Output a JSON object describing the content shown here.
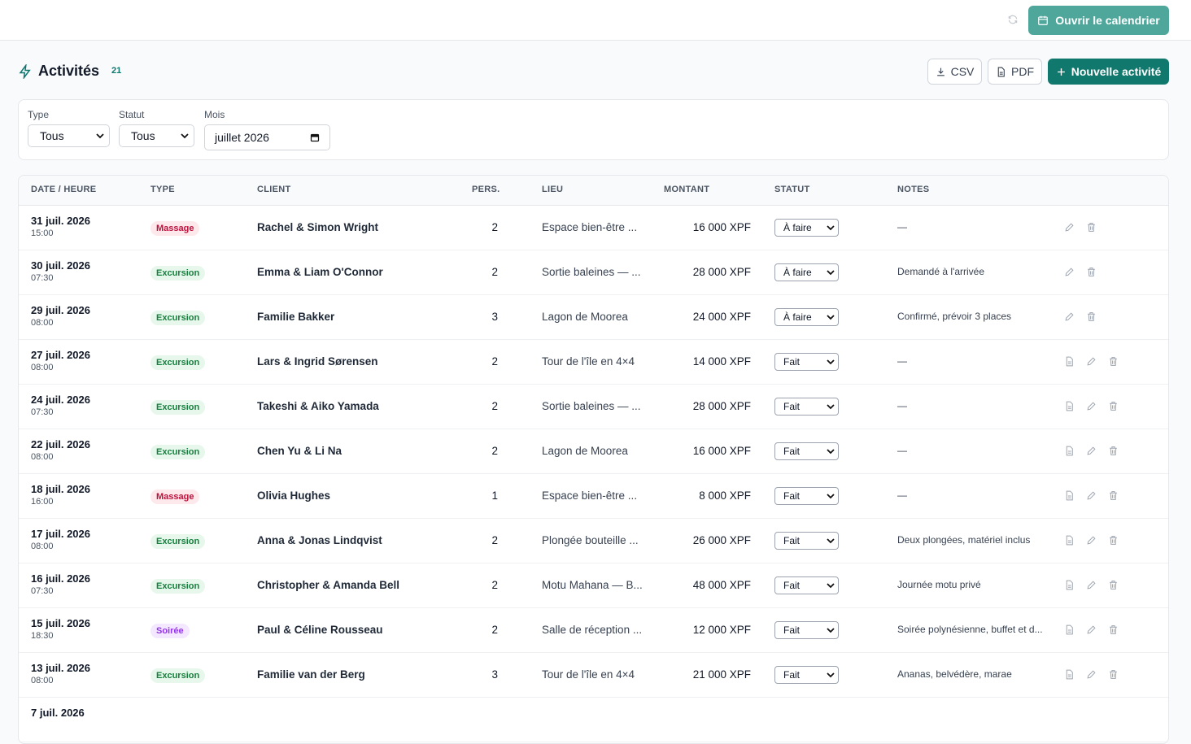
{
  "topbar": {
    "calendar_button": "Ouvrir le calendrier"
  },
  "header": {
    "title": "Activités",
    "count": 21,
    "csv": "CSV",
    "pdf": "PDF",
    "new": "Nouvelle activité"
  },
  "filters": [
    {
      "label": "Type",
      "value": "Tous"
    },
    {
      "label": "Statut",
      "value": "Tous"
    },
    {
      "label": "Mois",
      "value": "juillet 2026"
    }
  ],
  "table": {
    "columns": [
      "DATE / HEURE",
      "TYPE",
      "CLIENT",
      "PERS.",
      "LIEU",
      "MONTANT",
      "STATUT",
      "NOTES"
    ],
    "rows": [
      {
        "date": "31 juil. 2026",
        "time": "15:00",
        "type": "Massage",
        "type_color": "red",
        "client": "Rachel & Simon Wright",
        "pers": 2,
        "lieu": "Espace bien-être ...",
        "montant": "16 000 XPF",
        "statut": "À faire",
        "notes": "—",
        "invoice": false
      },
      {
        "date": "30 juil. 2026",
        "time": "07:30",
        "type": "Excursion",
        "type_color": "green",
        "client": "Emma & Liam O'Connor",
        "pers": 2,
        "lieu": "Sortie baleines — ...",
        "montant": "28 000 XPF",
        "statut": "À faire",
        "notes": "Demandé à l'arrivée",
        "invoice": false
      },
      {
        "date": "29 juil. 2026",
        "time": "08:00",
        "type": "Excursion",
        "type_color": "green",
        "client": "Familie Bakker",
        "pers": 3,
        "lieu": "Lagon de Moorea",
        "montant": "24 000 XPF",
        "statut": "À faire",
        "notes": "Confirmé, prévoir 3 places",
        "invoice": false
      },
      {
        "date": "27 juil. 2026",
        "time": "08:00",
        "type": "Excursion",
        "type_color": "green",
        "client": "Lars & Ingrid Sørensen",
        "pers": 2,
        "lieu": "Tour de l'île en 4×4",
        "montant": "14 000 XPF",
        "statut": "Fait",
        "notes": "—",
        "invoice": true
      },
      {
        "date": "24 juil. 2026",
        "time": "07:30",
        "type": "Excursion",
        "type_color": "green",
        "client": "Takeshi & Aiko Yamada",
        "pers": 2,
        "lieu": "Sortie baleines — ...",
        "montant": "28 000 XPF",
        "statut": "Fait",
        "notes": "—",
        "invoice": true
      },
      {
        "date": "22 juil. 2026",
        "time": "08:00",
        "type": "Excursion",
        "type_color": "green",
        "client": "Chen Yu & Li Na",
        "pers": 2,
        "lieu": "Lagon de Moorea",
        "montant": "16 000 XPF",
        "statut": "Fait",
        "notes": "—",
        "invoice": true
      },
      {
        "date": "18 juil. 2026",
        "time": "16:00",
        "type": "Massage",
        "type_color": "red",
        "client": "Olivia Hughes",
        "pers": 1,
        "lieu": "Espace bien-être ...",
        "montant": "8 000 XPF",
        "statut": "Fait",
        "notes": "—",
        "invoice": true
      },
      {
        "date": "17 juil. 2026",
        "time": "08:00",
        "type": "Excursion",
        "type_color": "green",
        "client": "Anna & Jonas Lindqvist",
        "pers": 2,
        "lieu": "Plongée bouteille ...",
        "montant": "26 000 XPF",
        "statut": "Fait",
        "notes": "Deux plongées, matériel inclus",
        "invoice": true
      },
      {
        "date": "16 juil. 2026",
        "time": "07:30",
        "type": "Excursion",
        "type_color": "green",
        "client": "Christopher & Amanda Bell",
        "pers": 2,
        "lieu": "Motu Mahana — B...",
        "montant": "48 000 XPF",
        "statut": "Fait",
        "notes": "Journée motu privé",
        "invoice": true
      },
      {
        "date": "15 juil. 2026",
        "time": "18:30",
        "type": "Soirée",
        "type_color": "purple",
        "client": "Paul & Céline Rousseau",
        "pers": 2,
        "lieu": "Salle de réception ...",
        "montant": "12 000 XPF",
        "statut": "Fait",
        "notes": "Soirée polynésienne, buffet et d...",
        "invoice": true
      },
      {
        "date": "13 juil. 2026",
        "time": "08:00",
        "type": "Excursion",
        "type_color": "green",
        "client": "Familie van der Berg",
        "pers": 3,
        "lieu": "Tour de l'île en 4×4",
        "montant": "21 000 XPF",
        "statut": "Fait",
        "notes": "Ananas, belvédère, marae",
        "invoice": true
      },
      {
        "date": "7 juil. 2026"
      }
    ]
  }
}
